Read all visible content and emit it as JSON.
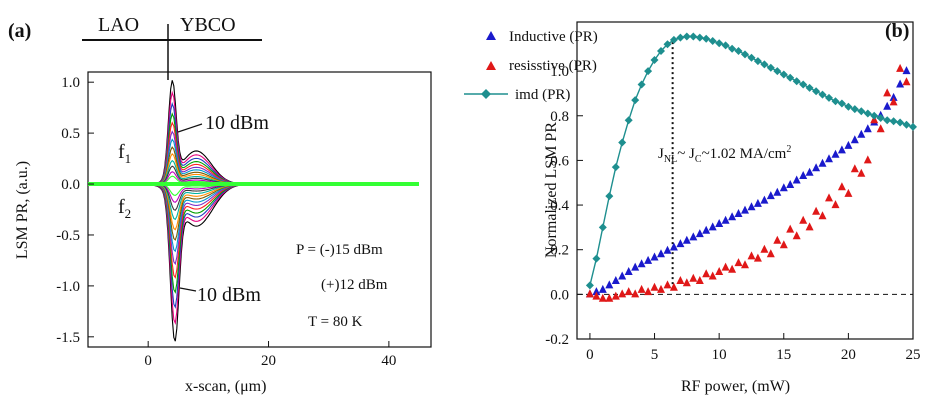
{
  "figure": {
    "panel_a_tag": "(a)",
    "panel_b_tag": "(b)"
  },
  "chart_data": [
    {
      "type": "line",
      "panel": "(a)",
      "xlabel": "x-scan, (μm)",
      "ylabel": "LSM PR, (a.u.)",
      "xlim": [
        -10,
        47
      ],
      "ylim": [
        -1.6,
        1.1
      ],
      "xticks": [
        0,
        20,
        40
      ],
      "yticks": [
        1.0,
        0.5,
        0.0,
        -0.5,
        -1.0,
        -1.5
      ],
      "ytick_labels": [
        "1.0",
        "0.5",
        "0.0",
        "-0.5",
        "-1.0",
        "-1.5"
      ],
      "region_labels": [
        "LAO",
        "YBCO"
      ],
      "interface_x": 4,
      "annotations": {
        "f1": "f",
        "f1_sub": "1",
        "f2": "f",
        "f2_sub": "2",
        "peak_pos": "10 dBm",
        "peak_neg": "10 dBm",
        "power1": "P = (-)15 dBm",
        "power2": "(+)12 dBm",
        "temp": "T = 80 K"
      },
      "series_peaks": [
        0.93,
        0.82,
        0.72,
        0.63,
        0.55,
        0.47,
        0.4,
        0.33,
        0.27,
        0.21,
        0.16,
        0.11,
        0.07
      ],
      "series_troughs": [
        -1.38,
        -1.22,
        -1.08,
        -0.95,
        -0.82,
        -0.7,
        -0.59,
        -0.49,
        -0.4,
        -0.31,
        -0.23,
        -0.16,
        -0.1
      ],
      "series_colors": [
        "#000000",
        "#e6007e",
        "#1f3fbf",
        "#00a000",
        "#ff2020",
        "#7a2fc9",
        "#0099cc",
        "#7a5a00",
        "#ff8c00",
        "#00b4a0",
        "#3a3a3a",
        "#c000c0",
        "#33ff33"
      ]
    },
    {
      "type": "scatter",
      "panel": "(b)",
      "xlabel": "RF power, (mW)",
      "ylabel": "Normalized LSM PR",
      "xlim": [
        -1,
        25
      ],
      "ylim": [
        -0.2,
        1.22
      ],
      "xticks": [
        0,
        5,
        10,
        15,
        20,
        25
      ],
      "yticks": [
        -0.2,
        0.0,
        0.2,
        0.4,
        0.6,
        0.8,
        1.0
      ],
      "ytick_labels": [
        "-0.2",
        "0.0",
        "0.2",
        "0.4",
        "0.6",
        "0.8",
        "1.0"
      ],
      "annotation_vline_x": 6.4,
      "annotation": {
        "j": "J",
        "nl": "NL",
        "mid": "~ J",
        "c": "C",
        "val": "~1.02 MA/cm",
        "sup": "2"
      },
      "legend_position": "top-left",
      "series": [
        {
          "name": "Inductive (PR)",
          "color": "#1a1acc",
          "marker": "triangle",
          "x": [
            0.0,
            0.5,
            1.0,
            1.5,
            2.0,
            2.5,
            3.0,
            3.5,
            4.0,
            4.5,
            5.0,
            5.5,
            6.0,
            6.5,
            7.0,
            7.5,
            8.0,
            8.5,
            9.0,
            9.5,
            10.0,
            10.5,
            11.0,
            11.5,
            12.0,
            12.5,
            13.0,
            13.5,
            14.0,
            14.5,
            15.0,
            15.5,
            16.0,
            16.5,
            17.0,
            17.5,
            18.0,
            18.5,
            19.0,
            19.5,
            20.0,
            20.5,
            21.0,
            21.5,
            22.0,
            22.5,
            23.0,
            23.5,
            24.0,
            24.5
          ],
          "y": [
            0.0,
            0.01,
            0.02,
            0.04,
            0.06,
            0.08,
            0.1,
            0.12,
            0.135,
            0.15,
            0.165,
            0.18,
            0.195,
            0.21,
            0.225,
            0.24,
            0.255,
            0.27,
            0.285,
            0.3,
            0.315,
            0.33,
            0.345,
            0.36,
            0.375,
            0.39,
            0.405,
            0.42,
            0.44,
            0.455,
            0.475,
            0.49,
            0.51,
            0.53,
            0.545,
            0.565,
            0.585,
            0.605,
            0.625,
            0.645,
            0.665,
            0.69,
            0.715,
            0.74,
            0.77,
            0.8,
            0.84,
            0.88,
            0.94,
            1.0
          ]
        },
        {
          "name": "resisstive (PR)",
          "color": "#e01818",
          "marker": "triangle",
          "x": [
            0.0,
            0.5,
            1.0,
            1.5,
            2.0,
            2.5,
            3.0,
            3.5,
            4.0,
            4.5,
            5.0,
            5.5,
            6.0,
            6.5,
            7.0,
            7.5,
            8.0,
            8.5,
            9.0,
            9.5,
            10.0,
            10.5,
            11.0,
            11.5,
            12.0,
            12.5,
            13.0,
            13.5,
            14.0,
            14.5,
            15.0,
            15.5,
            16.0,
            16.5,
            17.0,
            17.5,
            18.0,
            18.5,
            19.0,
            19.5,
            20.0,
            20.5,
            21.0,
            21.5,
            22.0,
            22.5,
            23.0,
            23.5,
            24.0,
            24.5
          ],
          "y": [
            0.0,
            -0.01,
            -0.02,
            -0.02,
            -0.01,
            0.0,
            0.01,
            0.0,
            0.02,
            0.01,
            0.03,
            0.02,
            0.04,
            0.03,
            0.06,
            0.05,
            0.07,
            0.06,
            0.09,
            0.08,
            0.1,
            0.12,
            0.11,
            0.14,
            0.13,
            0.17,
            0.16,
            0.2,
            0.18,
            0.24,
            0.22,
            0.29,
            0.26,
            0.33,
            0.3,
            0.37,
            0.35,
            0.43,
            0.4,
            0.48,
            0.45,
            0.56,
            0.54,
            0.6,
            0.78,
            0.74,
            0.9,
            0.86,
            1.01,
            0.95
          ]
        },
        {
          "name": "imd (PR)",
          "color": "#1e8f8f",
          "marker": "diamond",
          "x": [
            0.0,
            0.5,
            1.0,
            1.5,
            2.0,
            2.5,
            3.0,
            3.5,
            4.0,
            4.5,
            5.0,
            5.5,
            6.0,
            6.5,
            7.0,
            7.5,
            8.0,
            8.5,
            9.0,
            9.5,
            10.0,
            10.5,
            11.0,
            11.5,
            12.0,
            12.5,
            13.0,
            13.5,
            14.0,
            14.5,
            15.0,
            15.5,
            16.0,
            16.5,
            17.0,
            17.5,
            18.0,
            18.5,
            19.0,
            19.5,
            20.0,
            20.5,
            21.0,
            21.5,
            22.0,
            22.5,
            23.0,
            23.5,
            24.0,
            24.5,
            25.0
          ],
          "y": [
            0.04,
            0.16,
            0.3,
            0.44,
            0.57,
            0.68,
            0.78,
            0.87,
            0.94,
            1.0,
            1.05,
            1.09,
            1.12,
            1.14,
            1.15,
            1.155,
            1.155,
            1.15,
            1.145,
            1.135,
            1.125,
            1.115,
            1.1,
            1.09,
            1.075,
            1.06,
            1.045,
            1.03,
            1.015,
            1.0,
            0.985,
            0.97,
            0.955,
            0.94,
            0.925,
            0.91,
            0.895,
            0.88,
            0.865,
            0.855,
            0.84,
            0.83,
            0.82,
            0.81,
            0.8,
            0.79,
            0.78,
            0.775,
            0.77,
            0.76,
            0.75
          ]
        }
      ]
    }
  ]
}
